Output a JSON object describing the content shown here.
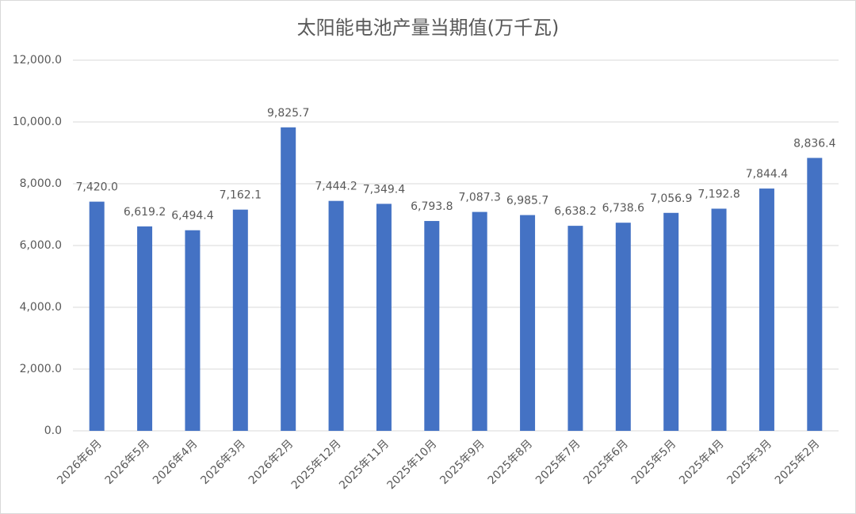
{
  "chart_data": {
    "type": "bar",
    "title": "太阳能电池产量当期值(万千瓦)",
    "categories": [
      "2026年6月",
      "2026年5月",
      "2026年4月",
      "2026年3月",
      "2026年2月",
      "2025年12月",
      "2025年11月",
      "2025年10月",
      "2025年9月",
      "2025年8月",
      "2025年7月",
      "2025年6月",
      "2025年5月",
      "2025年4月",
      "2025年3月",
      "2025年2月"
    ],
    "values": [
      7420.0,
      6619.2,
      6494.4,
      7162.1,
      9825.7,
      7444.2,
      7349.4,
      6793.8,
      7087.3,
      6985.7,
      6638.2,
      6738.6,
      7056.9,
      7192.8,
      7844.4,
      8836.4
    ],
    "value_labels": [
      "7,420.0",
      "6,619.2",
      "6,494.4",
      "7,162.1",
      "9,825.7",
      "7,444.2",
      "7,349.4",
      "6,793.8",
      "7,087.3",
      "6,985.7",
      "6,638.2",
      "6,738.6",
      "7,056.9",
      "7,192.8",
      "7,844.4",
      "8,836.4"
    ],
    "color": "#4472c4",
    "ylim": [
      0,
      12000
    ],
    "yticks": [
      {
        "value": 0,
        "label": "0.0"
      },
      {
        "value": 2000,
        "label": "2,000.0"
      },
      {
        "value": 4000,
        "label": "4,000.0"
      },
      {
        "value": 6000,
        "label": "6,000.0"
      },
      {
        "value": 8000,
        "label": "8,000.0"
      },
      {
        "value": 10000,
        "label": "10,000.0"
      },
      {
        "value": 12000,
        "label": "12,000.0"
      }
    ],
    "grid": true
  }
}
